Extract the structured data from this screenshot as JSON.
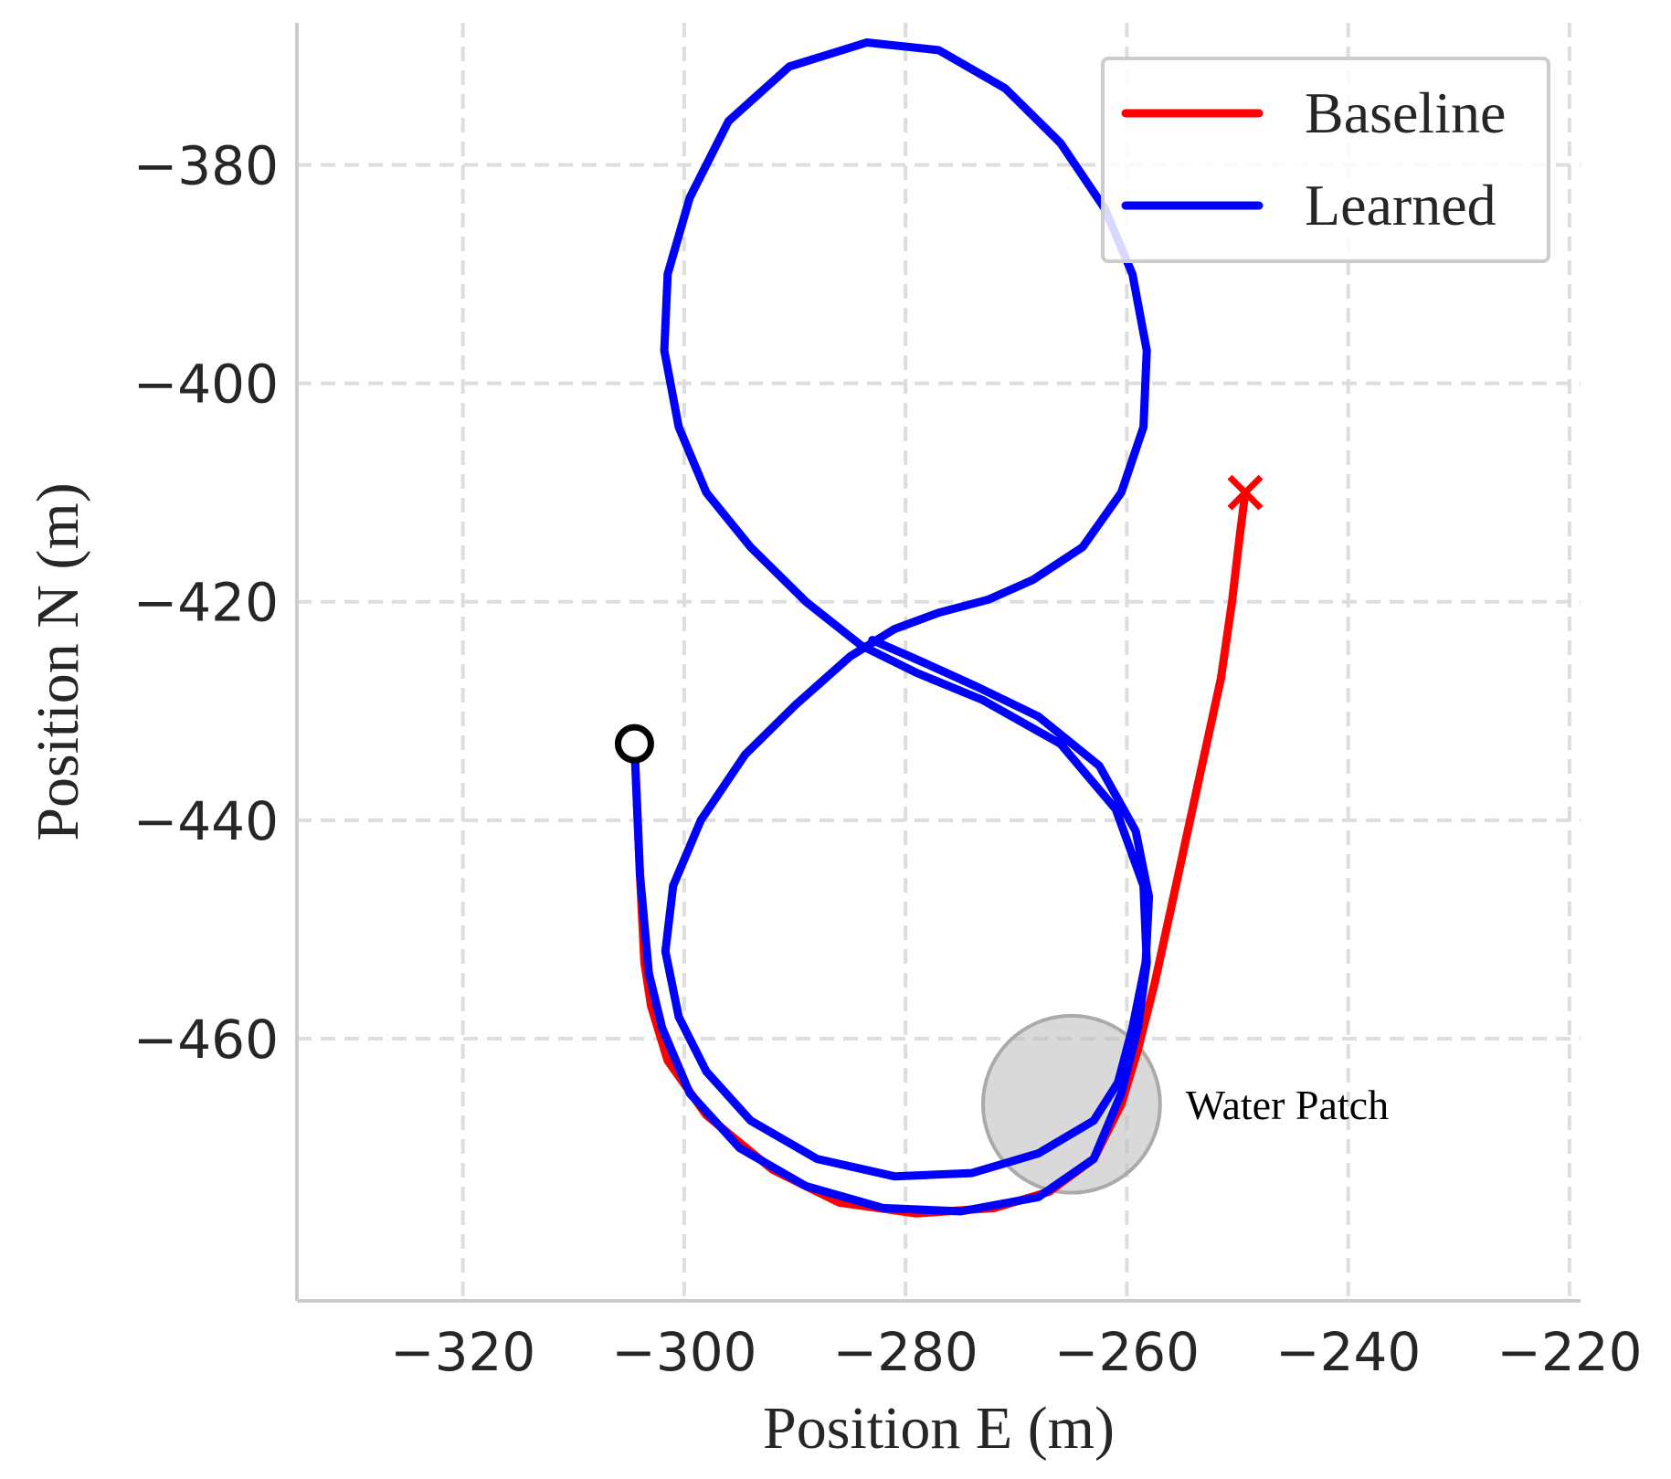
{
  "chart_data": {
    "type": "line",
    "xlabel": "Position E (m)",
    "ylabel": "Position N (m)",
    "xlim": [
      -335,
      -219
    ],
    "ylim": [
      -484,
      -367
    ],
    "xticks": [
      -320,
      -300,
      -280,
      -260,
      -240,
      -220
    ],
    "yticks": [
      -380,
      -400,
      -420,
      -440,
      -460
    ],
    "xtick_labels": [
      "−320",
      "−300",
      "−280",
      "−260",
      "−240",
      "−220"
    ],
    "ytick_labels": [
      "−380",
      "−400",
      "−420",
      "−440",
      "−460"
    ],
    "grid": true,
    "legend_position": "top-right",
    "series": [
      {
        "name": "Baseline",
        "color": "#ff0000",
        "points": [
          [
            -304.5,
            -433
          ],
          [
            -304,
            -445
          ],
          [
            -303.6,
            -453
          ],
          [
            -303,
            -457
          ],
          [
            -301.5,
            -462
          ],
          [
            -298,
            -467
          ],
          [
            -292,
            -472
          ],
          [
            -286,
            -475
          ],
          [
            -279,
            -476
          ],
          [
            -272,
            -475.5
          ],
          [
            -267,
            -474
          ],
          [
            -263,
            -471
          ],
          [
            -260.5,
            -466
          ],
          [
            -259,
            -461
          ],
          [
            -257.5,
            -455
          ],
          [
            -256,
            -448
          ],
          [
            -254.5,
            -441
          ],
          [
            -253,
            -434
          ],
          [
            -251.5,
            -427
          ],
          [
            -250.5,
            -420
          ],
          [
            -249.8,
            -414
          ],
          [
            -249.3,
            -410
          ]
        ]
      },
      {
        "name": "Learned",
        "color": "#0000ff",
        "points": [
          [
            -304.5,
            -433
          ],
          [
            -304,
            -445
          ],
          [
            -303.2,
            -454
          ],
          [
            -302,
            -459
          ],
          [
            -299.5,
            -465
          ],
          [
            -295,
            -470
          ],
          [
            -289,
            -473.5
          ],
          [
            -282,
            -475.5
          ],
          [
            -275,
            -475.8
          ],
          [
            -268,
            -474.5
          ],
          [
            -263,
            -471
          ],
          [
            -260.5,
            -465
          ],
          [
            -259,
            -459
          ],
          [
            -258.2,
            -453
          ],
          [
            -258.5,
            -446
          ],
          [
            -261,
            -439
          ],
          [
            -266,
            -433
          ],
          [
            -273,
            -429
          ],
          [
            -279,
            -426.5
          ],
          [
            -284,
            -424
          ],
          [
            -289,
            -420
          ],
          [
            -294,
            -415
          ],
          [
            -298,
            -410
          ],
          [
            -300.5,
            -404
          ],
          [
            -301.8,
            -397
          ],
          [
            -301.5,
            -390
          ],
          [
            -299.5,
            -383
          ],
          [
            -296,
            -376
          ],
          [
            -290.5,
            -371
          ],
          [
            -283.5,
            -368.8
          ],
          [
            -277,
            -369.5
          ],
          [
            -271,
            -373
          ],
          [
            -266,
            -378
          ],
          [
            -262,
            -384
          ],
          [
            -259.5,
            -390
          ],
          [
            -258.2,
            -397
          ],
          [
            -258.5,
            -404
          ],
          [
            -260.5,
            -410
          ],
          [
            -264,
            -415
          ],
          [
            -268.5,
            -418
          ],
          [
            -272.5,
            -419.8
          ],
          [
            -277,
            -421
          ],
          [
            -281,
            -422.5
          ],
          [
            -285,
            -425
          ],
          [
            -290,
            -429.5
          ],
          [
            -294.5,
            -434
          ],
          [
            -298.5,
            -440
          ],
          [
            -301,
            -446
          ],
          [
            -301.7,
            -452
          ],
          [
            -300.5,
            -458
          ],
          [
            -298,
            -463
          ],
          [
            -294,
            -467.5
          ],
          [
            -288,
            -471
          ],
          [
            -281,
            -472.6
          ],
          [
            -274,
            -472.3
          ],
          [
            -268,
            -470.5
          ],
          [
            -263,
            -467.5
          ],
          [
            -260.8,
            -464
          ],
          [
            -259.5,
            -459
          ],
          [
            -258.3,
            -453
          ],
          [
            -258,
            -447
          ],
          [
            -259.2,
            -441
          ],
          [
            -262.5,
            -435
          ],
          [
            -268,
            -430.5
          ],
          [
            -273.5,
            -427.8
          ],
          [
            -278.5,
            -425.5
          ],
          [
            -283,
            -423.5
          ]
        ]
      }
    ],
    "start_marker": {
      "x": -304.5,
      "y": -433,
      "shape": "circle",
      "color": "#000000"
    },
    "end_marker": {
      "x": -249.3,
      "y": -410,
      "shape": "x",
      "color": "#ff0000"
    },
    "regions": [
      {
        "label": "Water Patch",
        "center": [
          -265,
          -466
        ],
        "radius": 8,
        "color": "#c0c0c0"
      }
    ]
  }
}
